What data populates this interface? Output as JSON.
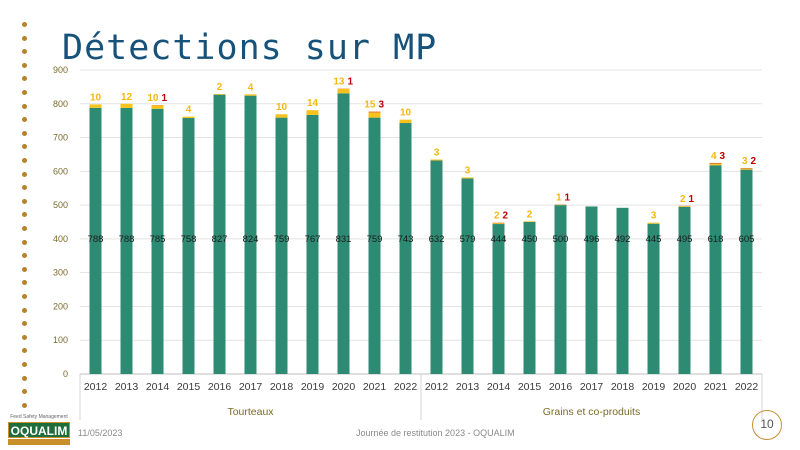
{
  "slide": {
    "title": "Détections sur MP",
    "date": "11/05/2023",
    "event": "Journée de restitution 2023 - OQUALIM",
    "page_number": "10"
  },
  "logo": {
    "tagline": "Feed Safety Management",
    "name": "OQUALIM"
  },
  "colors": {
    "base": "#2e8b73",
    "orange": "#f6c21b",
    "red": "#e0772a",
    "orange_label": "#f5b80f",
    "red_label": "#c00000",
    "title": "#16527a",
    "axis_text": "#7a6a2a"
  },
  "chart_data": {
    "type": "bar",
    "stacked": true,
    "title": "Détections sur MP",
    "ylim": [
      0,
      900
    ],
    "yticks": [
      0,
      100,
      200,
      300,
      400,
      500,
      600,
      700,
      800,
      900
    ],
    "grid": true,
    "groups": [
      {
        "name": "Tourteaux",
        "start": 0,
        "end": 10
      },
      {
        "name": "Grains et co-produits",
        "start": 11,
        "end": 21
      }
    ],
    "categories": [
      "2012",
      "2013",
      "2014",
      "2015",
      "2016",
      "2017",
      "2018",
      "2019",
      "2020",
      "2021",
      "2022",
      "2012",
      "2013",
      "2014",
      "2015",
      "2016",
      "2017",
      "2018",
      "2019",
      "2020",
      "2021",
      "2022"
    ],
    "series": [
      {
        "name": "base",
        "color": "#2e8b73",
        "values": [
          788,
          788,
          785,
          758,
          827,
          824,
          759,
          767,
          831,
          759,
          743,
          632,
          579,
          444,
          450,
          500,
          496,
          492,
          445,
          495,
          618,
          605
        ]
      },
      {
        "name": "orange",
        "color": "#f6c21b",
        "values": [
          10,
          12,
          10,
          4,
          2,
          4,
          10,
          14,
          13,
          15,
          10,
          3,
          3,
          2,
          2,
          1,
          0,
          0,
          3,
          2,
          4,
          3
        ]
      },
      {
        "name": "red",
        "color": "#e0772a",
        "values": [
          0,
          0,
          1,
          0,
          0,
          0,
          0,
          0,
          1,
          3,
          0,
          0,
          0,
          2,
          0,
          1,
          0,
          0,
          0,
          1,
          3,
          2
        ]
      }
    ]
  }
}
